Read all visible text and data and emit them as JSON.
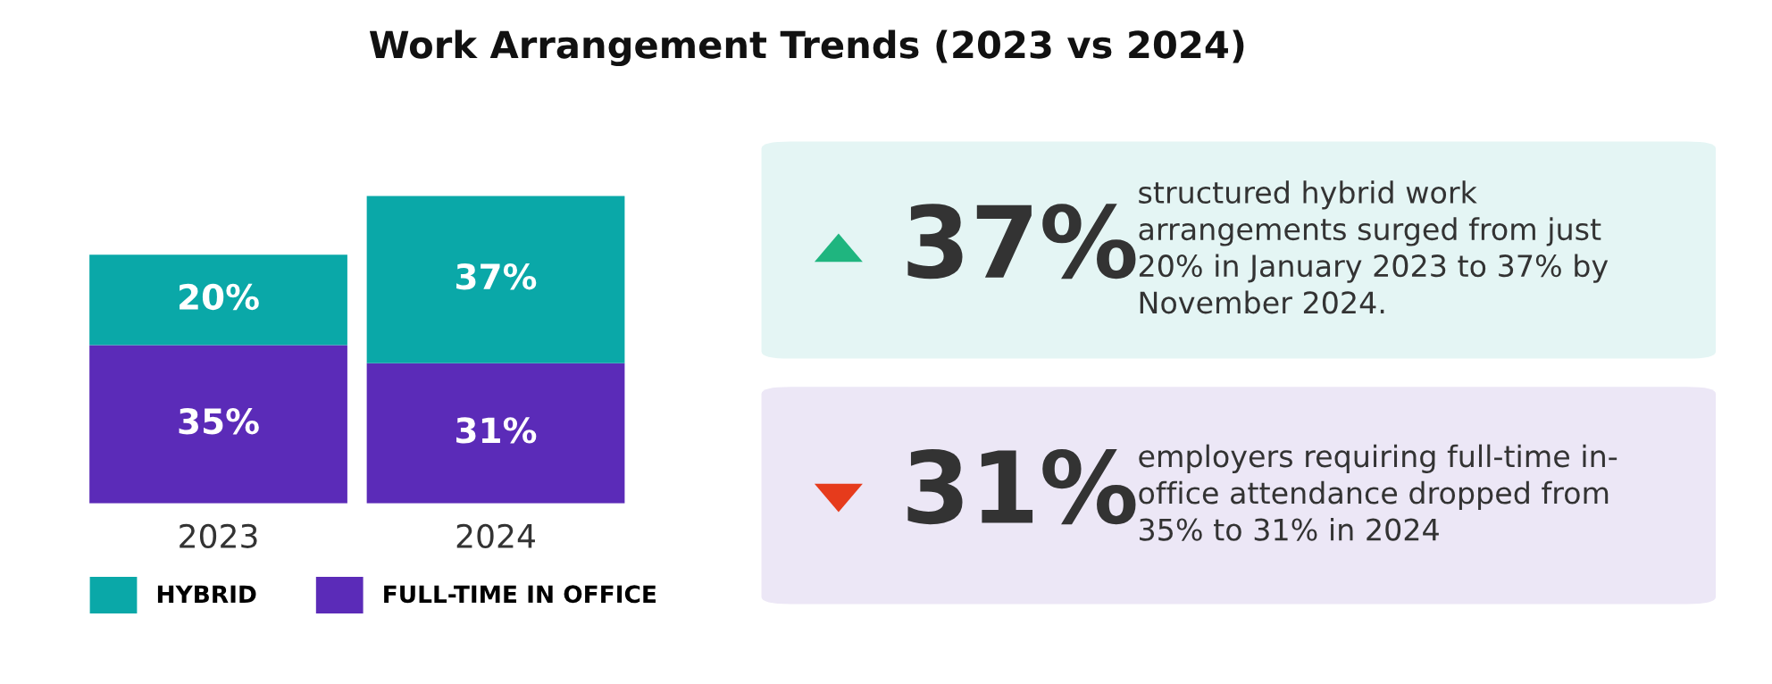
{
  "chart_data": [
    {
      "type": "bar",
      "title": "Work Arrangement Trends (2023 vs 2024)",
      "categories": [
        "2023",
        "2024"
      ],
      "stacked": true,
      "legend": "bottom",
      "series": [
        {
          "name": "FULL-TIME IN OFFICE",
          "color": "#5b2bb8",
          "values": [
            35,
            31
          ],
          "value_labels": [
            "35%",
            "31%"
          ]
        },
        {
          "name": "HYBRID",
          "color": "#0aa8a8",
          "values": [
            20,
            37
          ],
          "value_labels": [
            "20%",
            "37%"
          ]
        }
      ]
    },
    {
      "type": "other",
      "annotations": [
        "37%",
        "structured hybrid work\narrangements surged from just\n20% in January 2023 to 37% by\nNovember 2024.",
        "31%",
        "employers requiring full-time in-\noffice attendance dropped from\n35% to 31% in 2024"
      ]
    }
  ]
}
